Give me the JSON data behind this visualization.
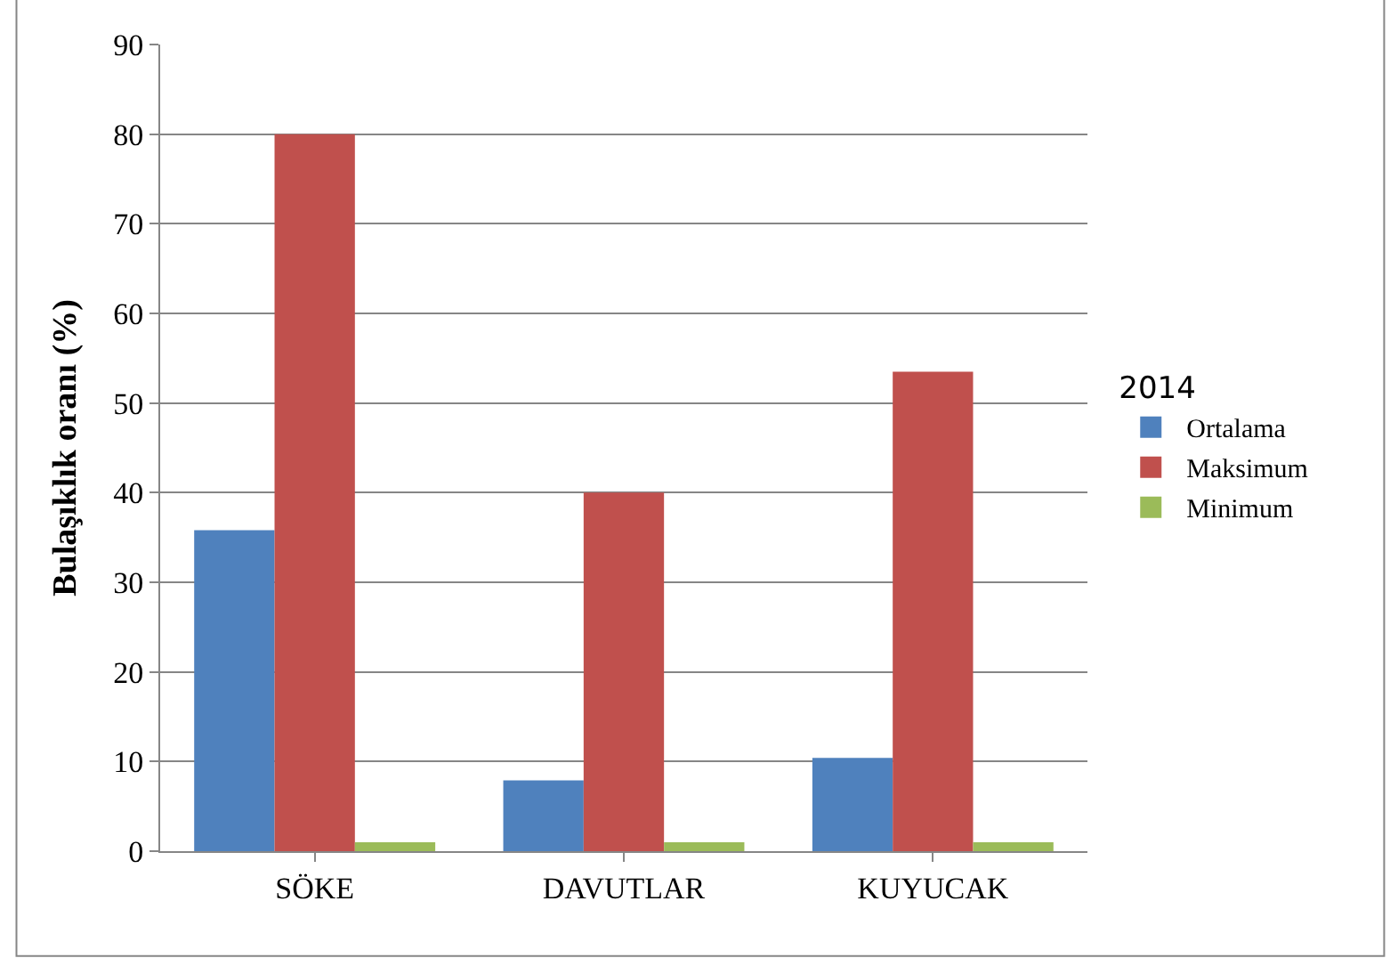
{
  "chart_data": {
    "type": "bar",
    "ylabel": "Bulaşıklık oranı (%)",
    "legend_title": "2014",
    "categories": [
      "SÖKE",
      "DAVUTLAR",
      "KUYUCAK"
    ],
    "series": [
      {
        "name": "Ortalama",
        "color": "#4f81bd",
        "values": [
          35.8,
          7.9,
          10.4
        ]
      },
      {
        "name": "Maksimum",
        "color": "#c0504d",
        "values": [
          80,
          40,
          53.5
        ]
      },
      {
        "name": "Minimum",
        "color": "#9bbb59",
        "values": [
          1,
          1,
          1
        ]
      }
    ],
    "ylim": [
      0,
      90
    ],
    "yticks": [
      0,
      10,
      20,
      30,
      40,
      50,
      60,
      70,
      80,
      90
    ],
    "grid": "y",
    "legend": "right"
  }
}
